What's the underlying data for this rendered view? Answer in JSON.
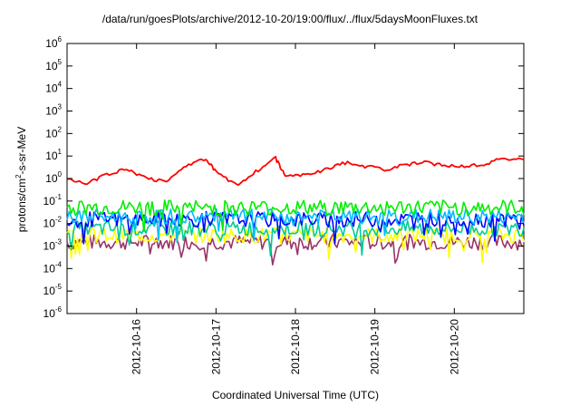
{
  "chart_data": {
    "type": "line",
    "title": "/data/run/goesPlots/archive/2012-10-20/19:00/flux/../flux/5daysMoonFluxes.txt",
    "xlabel": "Coordinated Universal Time (UTC)",
    "ylabel": {
      "prefix": "protons/cm",
      "exp": "2",
      "suffix": "-s-sr-MeV"
    },
    "y_scale": "log",
    "ylim": [
      1e-06,
      1000000.0
    ],
    "y_ticks": [
      {
        "base": "10",
        "exp": "-6",
        "value": -6
      },
      {
        "base": "10",
        "exp": "-5",
        "value": -5
      },
      {
        "base": "10",
        "exp": "-4",
        "value": -4
      },
      {
        "base": "10",
        "exp": "-3",
        "value": -3
      },
      {
        "base": "10",
        "exp": "-2",
        "value": -2
      },
      {
        "base": "10",
        "exp": "-1",
        "value": -1
      },
      {
        "base": "10",
        "exp": "0",
        "value": 0
      },
      {
        "base": "10",
        "exp": "1",
        "value": 1
      },
      {
        "base": "10",
        "exp": "2",
        "value": 2
      },
      {
        "base": "10",
        "exp": "3",
        "value": 3
      },
      {
        "base": "10",
        "exp": "4",
        "value": 4
      },
      {
        "base": "10",
        "exp": "5",
        "value": 5
      },
      {
        "base": "10",
        "exp": "6",
        "value": 6
      }
    ],
    "xlim": [
      "2012-10-15 03:00",
      "2012-10-20 21:00"
    ],
    "x_ticks": [
      "2012-10-16",
      "2012-10-17",
      "2012-10-18",
      "2012-10-19",
      "2012-10-20"
    ],
    "grid": false,
    "legend": "none",
    "series": [
      {
        "color": "#ff0000",
        "kind": "smooth",
        "x": [
          "2012-10-15 03:00",
          "2012-10-15 09:00",
          "2012-10-15 15:00",
          "2012-10-15 21:00",
          "2012-10-16 03:00",
          "2012-10-16 09:00",
          "2012-10-16 15:00",
          "2012-10-16 21:00",
          "2012-10-17 00:00",
          "2012-10-17 06:00",
          "2012-10-17 12:00",
          "2012-10-17 18:00",
          "2012-10-17 21:00",
          "2012-10-18 03:00",
          "2012-10-18 09:00",
          "2012-10-18 15:00",
          "2012-10-18 21:00",
          "2012-10-19 03:00",
          "2012-10-19 09:00",
          "2012-10-19 15:00",
          "2012-10-19 21:00",
          "2012-10-20 03:00",
          "2012-10-20 09:00",
          "2012-10-20 15:00",
          "2012-10-20 21:00"
        ],
        "values": [
          0.9,
          0.6,
          1.5,
          2.5,
          1.1,
          0.7,
          4.0,
          7.0,
          2.0,
          0.5,
          2.0,
          8.0,
          1.2,
          1.5,
          2.5,
          5.0,
          3.5,
          2.5,
          4.0,
          5.0,
          4.0,
          3.5,
          4.5,
          8.0,
          7.0
        ]
      },
      {
        "color": "#00ee00",
        "kind": "noisy",
        "base": 0.05,
        "x_start": "2012-10-15 03:00",
        "x_end": "2012-10-20 21:00"
      },
      {
        "color": "#00bbff",
        "kind": "noisy",
        "base": 0.02,
        "x_start": "2012-10-15 03:00",
        "x_end": "2012-10-20 21:00"
      },
      {
        "color": "#0000ff",
        "kind": "noisy",
        "base": 0.015,
        "x_start": "2012-10-15 03:00",
        "x_end": "2012-10-20 21:00"
      },
      {
        "color": "#00cc99",
        "kind": "noisy",
        "base": 0.006,
        "x_start": "2012-10-15 03:00",
        "x_end": "2012-10-20 21:00"
      },
      {
        "color": "#ffff00",
        "kind": "noisy",
        "base": 0.003,
        "x_start": "2012-10-15 03:00",
        "x_end": "2012-10-20 21:00"
      },
      {
        "color": "#993366",
        "kind": "noisy",
        "base": 0.0015,
        "x_start": "2012-10-15 03:00",
        "x_end": "2012-10-20 21:00"
      }
    ]
  }
}
